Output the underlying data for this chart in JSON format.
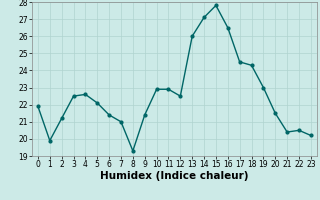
{
  "x": [
    0,
    1,
    2,
    3,
    4,
    5,
    6,
    7,
    8,
    9,
    10,
    11,
    12,
    13,
    14,
    15,
    16,
    17,
    18,
    19,
    20,
    21,
    22,
    23
  ],
  "y": [
    21.9,
    19.9,
    21.2,
    22.5,
    22.6,
    22.1,
    21.4,
    21.0,
    19.3,
    21.4,
    22.9,
    22.9,
    22.5,
    26.0,
    27.1,
    27.8,
    26.5,
    24.5,
    24.3,
    23.0,
    21.5,
    20.4,
    20.5,
    20.2
  ],
  "xlabel": "Humidex (Indice chaleur)",
  "xlim": [
    -0.5,
    23.5
  ],
  "ylim": [
    19,
    28
  ],
  "yticks": [
    19,
    20,
    21,
    22,
    23,
    24,
    25,
    26,
    27,
    28
  ],
  "xticks": [
    0,
    1,
    2,
    3,
    4,
    5,
    6,
    7,
    8,
    9,
    10,
    11,
    12,
    13,
    14,
    15,
    16,
    17,
    18,
    19,
    20,
    21,
    22,
    23
  ],
  "line_color": "#006666",
  "marker_color": "#006666",
  "bg_color": "#cceae7",
  "grid_color": "#b0d4d0",
  "tick_label_fontsize": 5.5,
  "xlabel_fontsize": 7.5,
  "marker_size": 2.0,
  "line_width": 1.0
}
